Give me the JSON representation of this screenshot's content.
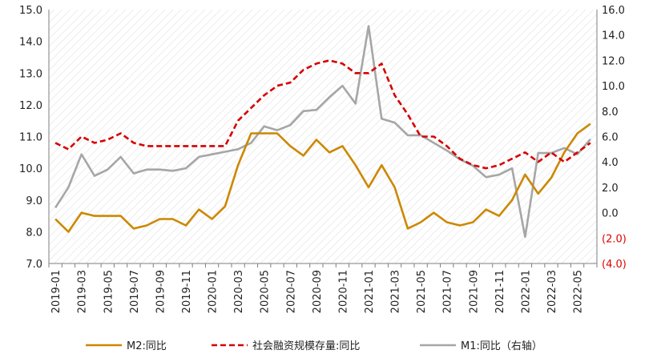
{
  "chart_data": {
    "type": "line",
    "x": [
      "2019-01",
      "2019-02",
      "2019-03",
      "2019-04",
      "2019-05",
      "2019-06",
      "2019-07",
      "2019-08",
      "2019-09",
      "2019-10",
      "2019-11",
      "2019-12",
      "2020-01",
      "2020-02",
      "2020-03",
      "2020-04",
      "2020-05",
      "2020-06",
      "2020-07",
      "2020-08",
      "2020-09",
      "2020-10",
      "2020-11",
      "2020-12",
      "2021-01",
      "2021-02",
      "2021-03",
      "2021-04",
      "2021-05",
      "2021-06",
      "2021-07",
      "2021-08",
      "2021-09",
      "2021-10",
      "2021-11",
      "2021-12",
      "2022-01",
      "2022-02",
      "2022-03",
      "2022-04",
      "2022-05",
      "2022-06"
    ],
    "x_tick_labels": [
      "2019-01",
      "2019-03",
      "2019-05",
      "2019-07",
      "2019-09",
      "2019-11",
      "2020-01",
      "2020-03",
      "2020-05",
      "2020-07",
      "2020-09",
      "2020-11",
      "2021-01",
      "2021-03",
      "2021-05",
      "2021-07",
      "2021-09",
      "2021-11",
      "2022-01",
      "2022-03",
      "2022-05"
    ],
    "left_axis": {
      "ylim": [
        7.0,
        15.0
      ],
      "ticks": [
        "7.0",
        "8.0",
        "9.0",
        "10.0",
        "11.0",
        "12.0",
        "13.0",
        "14.0",
        "15.0"
      ]
    },
    "right_axis": {
      "ylim": [
        -4.0,
        16.0
      ],
      "ticks": [
        "(4.0)",
        "(2.0)",
        "0.0",
        "2.0",
        "4.0",
        "6.0",
        "8.0",
        "10.0",
        "12.0",
        "14.0",
        "16.0"
      ]
    },
    "series": [
      {
        "name": "M2:同比",
        "axis": "left",
        "style": "solid",
        "color": "#cc8800",
        "values": [
          8.4,
          8.0,
          8.6,
          8.5,
          8.5,
          8.5,
          8.1,
          8.2,
          8.4,
          8.4,
          8.2,
          8.7,
          8.4,
          8.8,
          10.1,
          11.1,
          11.1,
          11.1,
          10.7,
          10.4,
          10.9,
          10.5,
          10.7,
          10.1,
          9.4,
          10.1,
          9.4,
          8.1,
          8.3,
          8.6,
          8.3,
          8.2,
          8.3,
          8.7,
          8.5,
          9.0,
          9.8,
          9.2,
          9.7,
          10.5,
          11.1,
          11.4
        ]
      },
      {
        "name": "社会融资规模存量:同比",
        "axis": "left",
        "style": "dashed",
        "color": "#d60000",
        "values": [
          10.8,
          10.6,
          11.0,
          10.8,
          10.9,
          11.1,
          10.8,
          10.7,
          10.7,
          10.7,
          10.7,
          10.7,
          10.7,
          10.7,
          11.5,
          11.9,
          12.3,
          12.6,
          12.7,
          13.1,
          13.3,
          13.4,
          13.3,
          13.0,
          13.0,
          13.3,
          12.3,
          11.7,
          11.0,
          11.0,
          10.7,
          10.3,
          10.1,
          10.0,
          10.1,
          10.3,
          10.5,
          10.2,
          10.5,
          10.2,
          10.5,
          10.8
        ]
      },
      {
        "name": "M1:同比（右轴）",
        "axis": "right",
        "style": "solid",
        "color": "#a6a6a6",
        "values": [
          0.4,
          2.0,
          4.6,
          2.9,
          3.4,
          4.4,
          3.1,
          3.4,
          3.4,
          3.3,
          3.5,
          4.4,
          4.6,
          4.8,
          5.0,
          5.5,
          6.8,
          6.5,
          6.9,
          8.0,
          8.1,
          9.1,
          10.0,
          8.6,
          14.7,
          7.4,
          7.1,
          6.1,
          6.1,
          5.5,
          4.9,
          4.2,
          3.7,
          2.8,
          3.0,
          3.5,
          -1.9,
          4.7,
          4.7,
          5.1,
          4.6,
          5.8
        ]
      }
    ]
  }
}
